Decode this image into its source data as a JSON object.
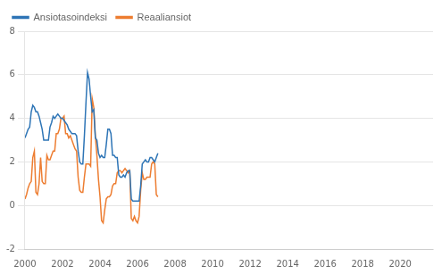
{
  "chart_data": {
    "type": "line",
    "x": [
      2000,
      2000.0833333333333,
      2000.1666666666667,
      2000.25,
      2000.3333333333333,
      2000.4166666666667,
      2000.5,
      2000.5833333333333,
      2000.6666666666667,
      2000.75,
      2000.8333333333333,
      2000.9166666666667,
      2001,
      2001.0833333333333,
      2001.1666666666667,
      2001.25,
      2001.3333333333333,
      2001.4166666666667,
      2001.5,
      2001.5833333333333,
      2001.6666666666667,
      2001.75,
      2001.8333333333333,
      2001.9166666666667,
      2002,
      2002.0833333333333,
      2002.1666666666667,
      2002.25,
      2002.3333333333333,
      2002.4166666666667,
      2002.5,
      2002.5833333333333,
      2002.6666666666667,
      2002.75,
      2002.8333333333333,
      2002.9166666666667,
      2003,
      2003.0833333333333,
      2003.1666666666667,
      2003.25,
      2003.3333333333333,
      2003.4166666666667,
      2003.5,
      2003.5833333333333,
      2003.6666666666667,
      2003.75,
      2003.8333333333333,
      2003.9166666666667,
      2004,
      2004.0833333333333,
      2004.1666666666667,
      2004.25,
      2004.3333333333333,
      2004.4166666666667,
      2004.5,
      2004.5833333333333,
      2004.6666666666667,
      2004.75,
      2004.8333333333333,
      2004.9166666666667,
      2005,
      2005.0833333333333,
      2005.1666666666667,
      2005.25,
      2005.3333333333333,
      2005.4166666666667,
      2005.5,
      2005.5833333333333,
      2005.6666666666667,
      2005.75,
      2005.8333333333333,
      2005.9166666666667,
      2006,
      2006.0833333333333,
      2006.1666666666667,
      2006.25,
      2006.3333333333333,
      2006.4166666666667,
      2006.5,
      2006.5833333333333,
      2006.6666666666667,
      2006.75,
      2006.8333333333333,
      2006.9166666666667,
      2007,
      2007.0833333333333
    ],
    "series": [
      {
        "name": "Ansiotasoindeksi",
        "color": "#2e75b6",
        "values": [
          3.1,
          3.3,
          3.5,
          3.6,
          4.3,
          4.6,
          4.5,
          4.3,
          4.3,
          4.1,
          3.8,
          3.5,
          3.0,
          3.0,
          3.0,
          3.0,
          3.6,
          3.8,
          4.1,
          4.0,
          4.1,
          4.2,
          4.1,
          4.0,
          4.0,
          3.9,
          3.8,
          3.7,
          3.5,
          3.4,
          3.3,
          3.3,
          3.3,
          3.2,
          2.5,
          2.0,
          1.9,
          1.9,
          3.2,
          4.7,
          6.1,
          5.8,
          5.0,
          4.3,
          4.4,
          3.1,
          3.0,
          2.4,
          2.2,
          2.3,
          2.2,
          2.2,
          2.8,
          3.5,
          3.5,
          3.3,
          2.3,
          2.3,
          2.2,
          2.2,
          1.4,
          1.3,
          1.3,
          1.4,
          1.3,
          1.5,
          1.6,
          1.6,
          0.3,
          0.2,
          0.2,
          0.2,
          0.2,
          0.2,
          0.9,
          1.9,
          2.0,
          2.1,
          2.0,
          2.0,
          2.2,
          2.2,
          2.1,
          2.0,
          2.2,
          2.4
        ]
      },
      {
        "name": "Reaaliansiot",
        "color": "#ed7d31",
        "values": [
          0.3,
          0.5,
          0.8,
          1.0,
          1.1,
          2.2,
          2.5,
          0.6,
          0.5,
          1.0,
          2.2,
          1.1,
          1.0,
          1.0,
          2.3,
          2.1,
          2.1,
          2.3,
          2.5,
          2.5,
          3.3,
          3.3,
          3.5,
          4.0,
          4.0,
          4.1,
          3.3,
          3.3,
          3.1,
          3.2,
          3.0,
          2.8,
          2.6,
          2.5,
          1.3,
          0.7,
          0.6,
          0.6,
          1.3,
          1.9,
          1.9,
          1.9,
          1.8,
          4.9,
          4.5,
          3.2,
          2.3,
          1.2,
          0.4,
          -0.7,
          -0.8,
          -0.2,
          0.3,
          0.4,
          0.4,
          0.5,
          0.9,
          1.0,
          1.0,
          1.5,
          1.6,
          1.6,
          1.5,
          1.6,
          1.7,
          1.6,
          1.5,
          1.6,
          -0.6,
          -0.7,
          -0.5,
          -0.7,
          -0.8,
          -0.5,
          0.7,
          1.5,
          1.2,
          1.2,
          1.3,
          1.3,
          1.3,
          1.9,
          2.0,
          1.9,
          0.5,
          0.4
        ]
      }
    ],
    "xlim": [
      2000.0,
      2021.75
    ],
    "xticks": [
      2000,
      2002,
      2004,
      2006,
      2008,
      2010,
      2012,
      2014,
      2016,
      2018,
      2020
    ],
    "ylim": [
      -2,
      8
    ],
    "yticks": [
      -2,
      0,
      2,
      4,
      6,
      8
    ],
    "grid": "y",
    "legend": "upper left"
  }
}
